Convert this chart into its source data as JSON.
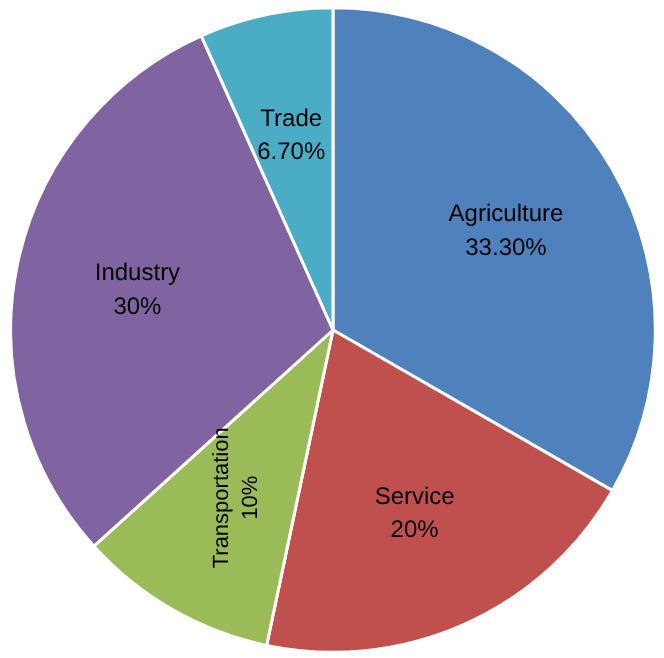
{
  "chart_data": {
    "type": "pie",
    "categories": [
      "Agriculture",
      "Service",
      "Transportation",
      "Industry",
      "Trade"
    ],
    "values": [
      33.3,
      20,
      10,
      30,
      6.7
    ],
    "value_labels": [
      "33.30%",
      "20%",
      "10%",
      "30%",
      "6.70%"
    ],
    "colors": [
      "#4f81bd",
      "#c0504d",
      "#9bbb59",
      "#8064a2",
      "#4bacc6"
    ]
  }
}
